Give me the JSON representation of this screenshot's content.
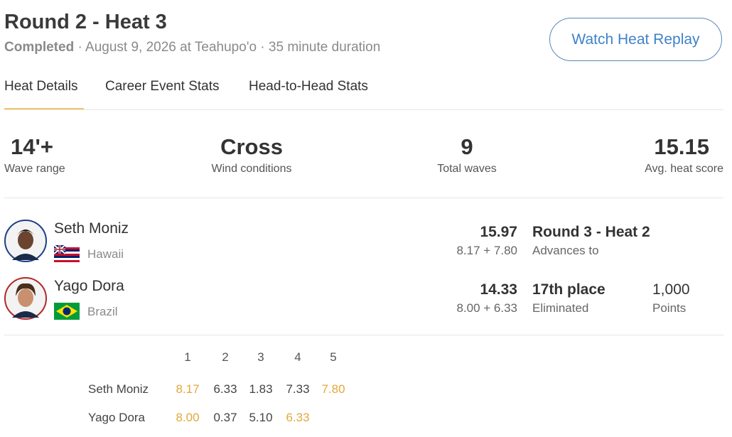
{
  "header": {
    "title": "Round 2 - Heat 3",
    "status": "Completed",
    "separator": "·",
    "date_location": "August 9, 2026 at Teahupo'o",
    "duration": "35 minute duration",
    "button": "Watch Heat Replay"
  },
  "tabs": [
    "Heat Details",
    "Career Event Stats",
    "Head-to-Head Stats"
  ],
  "stats": [
    {
      "value": "14'+",
      "label": "Wave range"
    },
    {
      "value": "Cross",
      "label": "Wind conditions"
    },
    {
      "value": 9,
      "label": "Total waves"
    },
    {
      "value": 15.15,
      "label": "Avg. heat score"
    }
  ],
  "surfers": [
    {
      "name": "Seth Moniz",
      "country": "Hawaii",
      "total": 15.97,
      "breakdown": "8.17 + 7.80",
      "result": "Round 3 - Heat 2",
      "result_label": "Advances to"
    },
    {
      "name": "Yago Dora",
      "country": "Brazil",
      "total": 14.33,
      "breakdown": "8.00 + 6.33",
      "result": "17th place",
      "result_label": "Eliminated",
      "points": "1,000",
      "points_label": "Points"
    }
  ],
  "waves": {
    "columns": [
      1,
      2,
      3,
      4,
      5
    ],
    "highlight_color": "#e2a83b",
    "rows": [
      {
        "name": "Seth Moniz",
        "scores": [
          "8.17",
          "6.33",
          "1.83",
          "7.33",
          "7.80"
        ],
        "counted": [
          0,
          4
        ]
      },
      {
        "name": "Yago Dora",
        "scores": [
          "8.00",
          "0.37",
          "5.10",
          "6.33",
          null
        ],
        "counted": [
          0,
          3
        ]
      }
    ]
  }
}
